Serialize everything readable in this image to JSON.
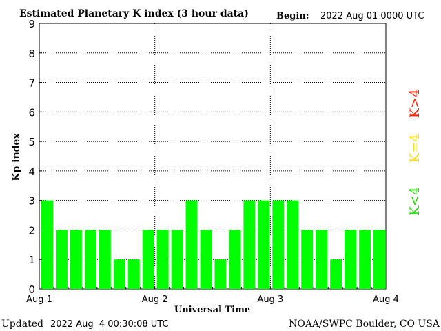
{
  "chart_data": {
    "type": "bar",
    "title": "Estimated Planetary K index (3 hour data)",
    "begin_label": "Begin:",
    "begin_value": "2022 Aug 01 0000 UTC",
    "xlabel": "Universal Time",
    "ylabel": "Kp index",
    "ylim": [
      0,
      9
    ],
    "y_ticks": [
      "0",
      "1",
      "2",
      "3",
      "4",
      "5",
      "6",
      "7",
      "8",
      "9"
    ],
    "x_ticks": [
      "Aug 1",
      "Aug 2",
      "Aug 3",
      "Aug 4"
    ],
    "values": [
      3,
      2,
      2,
      2,
      2,
      1,
      1,
      2,
      2,
      2,
      3,
      2,
      1,
      2,
      3,
      3,
      3,
      3,
      2,
      2,
      1,
      2,
      2,
      2
    ],
    "bar_color": "#00ff00",
    "grid": "dotted",
    "legend": {
      "k_high": {
        "label": "K>4",
        "color": "#ff2200"
      },
      "k_equal": {
        "label": "K=4",
        "color": "#ffdd00"
      },
      "k_low": {
        "label": "K<4",
        "color": "#22dd00"
      }
    }
  },
  "footer": {
    "updated_label": "Updated",
    "updated_value": "2022 Aug  4 00:30:08 UTC",
    "credit": "NOAA/SWPC Boulder, CO USA"
  }
}
